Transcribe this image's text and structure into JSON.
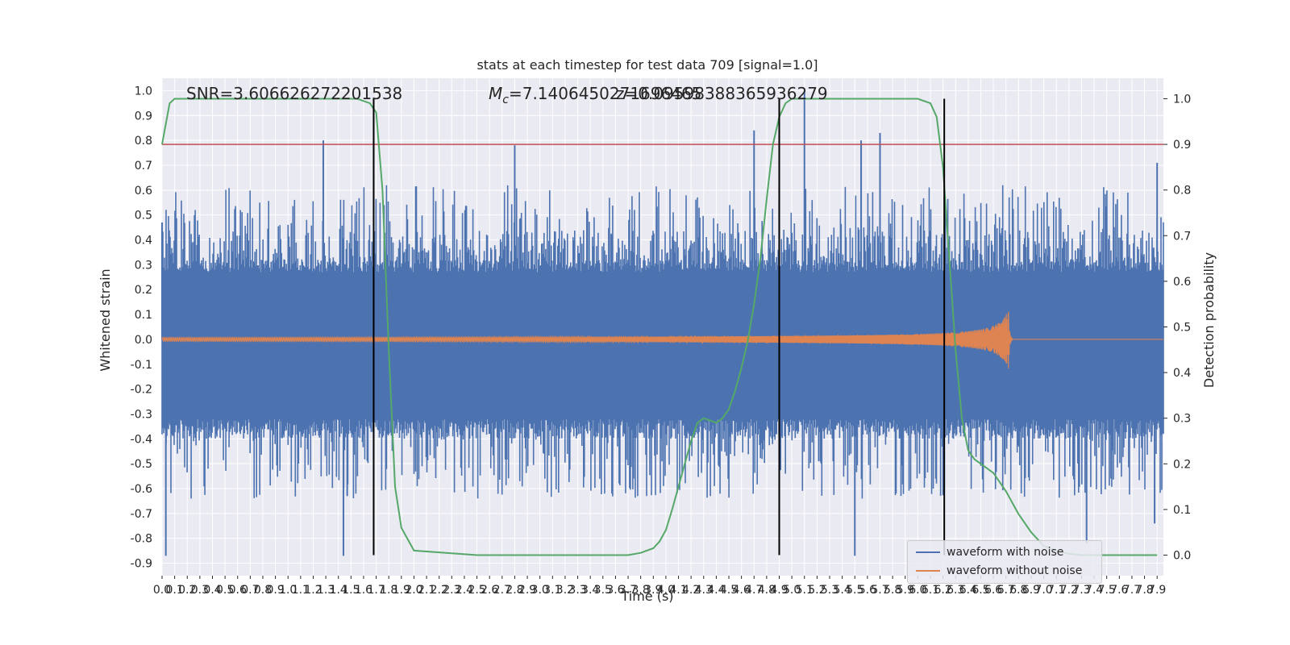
{
  "chart_data": {
    "type": "line",
    "title": "stats at each timestep for test data 709 [signal=1.0]",
    "xlabel": "Time (s)",
    "ylabel": "Whitened strain",
    "ylabel_right": "Detection probability",
    "annotations": {
      "snr": "SNR=3.606626272201538",
      "mc_symbol": "M",
      "mc_subscript": "c",
      "mc_value": "=7.1406450271696465",
      "z_text": "z=0.09598388365936279"
    },
    "xlim": [
      0.0,
      7.95
    ],
    "ylim": [
      -0.95,
      1.05
    ],
    "ylim_right": [
      -0.045,
      1.045
    ],
    "x_ticks": [
      0.0,
      0.1,
      0.2,
      0.3,
      0.4,
      0.5,
      0.6,
      0.7,
      0.8,
      0.9,
      1.0,
      1.1,
      1.2,
      1.3,
      1.4,
      1.5,
      1.6,
      1.7,
      1.8,
      1.9,
      2.0,
      2.1,
      2.2,
      2.3,
      2.4,
      2.5,
      2.6,
      2.7,
      2.8,
      2.9,
      3.0,
      3.1,
      3.2,
      3.3,
      3.4,
      3.5,
      3.6,
      3.7,
      3.8,
      3.9,
      4.0,
      4.1,
      4.2,
      4.3,
      4.4,
      4.5,
      4.6,
      4.7,
      4.8,
      4.9,
      5.0,
      5.1,
      5.2,
      5.3,
      5.4,
      5.5,
      5.6,
      5.7,
      5.8,
      5.9,
      6.0,
      6.1,
      6.2,
      6.3,
      6.4,
      6.5,
      6.6,
      6.7,
      6.8,
      6.9,
      7.0,
      7.1,
      7.2,
      7.3,
      7.4,
      7.5,
      7.6,
      7.7,
      7.8,
      7.9
    ],
    "y_ticks_left": [
      -0.9,
      -0.8,
      -0.7,
      -0.6,
      -0.5,
      -0.4,
      -0.3,
      -0.2,
      -0.1,
      0.0,
      0.1,
      0.2,
      0.3,
      0.4,
      0.5,
      0.6,
      0.7,
      0.8,
      0.9,
      1.0
    ],
    "y_ticks_right": [
      0.0,
      0.1,
      0.2,
      0.3,
      0.4,
      0.5,
      0.6,
      0.7,
      0.8,
      0.9,
      1.0
    ],
    "threshold_right": 0.9,
    "vertical_lines_x": [
      1.68,
      4.9,
      6.21
    ],
    "noise_envelope": {
      "typical_abs": 0.32,
      "max_abs": 1.0,
      "min_value": -0.87,
      "spikes": [
        [
          0.0,
          0.47
        ],
        [
          0.03,
          -0.87
        ],
        [
          1.28,
          0.8
        ],
        [
          1.44,
          -0.87
        ],
        [
          1.47,
          -0.63
        ],
        [
          2.8,
          0.78
        ],
        [
          4.7,
          0.84
        ],
        [
          5.1,
          1.0
        ],
        [
          5.5,
          -0.87
        ],
        [
          5.55,
          0.8
        ],
        [
          5.7,
          0.83
        ],
        [
          7.34,
          -0.82
        ],
        [
          7.9,
          0.71
        ],
        [
          7.88,
          -0.74
        ]
      ]
    },
    "series": [
      {
        "name": "waveform with noise",
        "color": "#4c72b0",
        "style": "dense noise"
      },
      {
        "name": "waveform without noise",
        "color": "#dd8452",
        "style": "chirp",
        "merger_time": 6.72,
        "peak_amplitude": 0.12,
        "ringdown_end": 6.75
      },
      {
        "name": "Detection probability",
        "color": "#55a868",
        "axis": "right",
        "x": [
          0.0,
          0.06,
          0.1,
          0.2,
          0.5,
          1.0,
          1.4,
          1.55,
          1.65,
          1.7,
          1.75,
          1.8,
          1.85,
          1.9,
          2.0,
          2.5,
          3.0,
          3.5,
          3.7,
          3.8,
          3.9,
          3.95,
          4.0,
          4.05,
          4.1,
          4.15,
          4.2,
          4.25,
          4.3,
          4.35,
          4.4,
          4.45,
          4.5,
          4.55,
          4.6,
          4.65,
          4.7,
          4.75,
          4.8,
          4.85,
          4.9,
          4.95,
          5.0,
          5.05,
          5.5,
          6.0,
          6.1,
          6.15,
          6.2,
          6.25,
          6.3,
          6.35,
          6.4,
          6.45,
          6.5,
          6.6,
          6.7,
          6.8,
          6.9,
          7.0,
          7.1,
          7.2,
          7.3,
          7.5,
          7.9
        ],
        "y": [
          0.9,
          0.99,
          1.0,
          1.0,
          1.0,
          1.0,
          1.0,
          1.0,
          0.99,
          0.97,
          0.8,
          0.45,
          0.15,
          0.06,
          0.01,
          0.0,
          0.0,
          0.0,
          0.0,
          0.005,
          0.015,
          0.03,
          0.055,
          0.1,
          0.15,
          0.2,
          0.25,
          0.29,
          0.3,
          0.295,
          0.29,
          0.3,
          0.32,
          0.36,
          0.41,
          0.47,
          0.55,
          0.65,
          0.78,
          0.9,
          0.96,
          0.99,
          1.0,
          1.0,
          1.0,
          1.0,
          0.99,
          0.96,
          0.85,
          0.65,
          0.45,
          0.3,
          0.23,
          0.21,
          0.2,
          0.18,
          0.14,
          0.09,
          0.05,
          0.02,
          0.01,
          0.003,
          0.0,
          0.0,
          0.0
        ]
      }
    ],
    "threshold_color": "#c44e52",
    "vline_color": "#000000",
    "grid": true,
    "legend_placement": "bottom-right"
  }
}
